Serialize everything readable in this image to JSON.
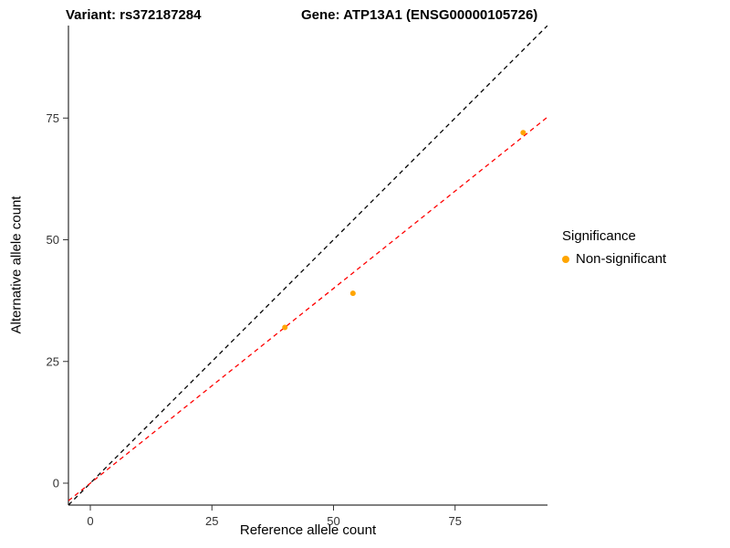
{
  "titles": {
    "left": "Variant: rs372187284",
    "right": "Gene: ATP13A1 (ENSG00000105726)"
  },
  "legend": {
    "title": "Significance",
    "items": [
      {
        "label": "Non-significant",
        "color": "#FFA500"
      }
    ]
  },
  "chart_data": {
    "type": "scatter",
    "title": "Variant: rs372187284  Gene: ATP13A1 (ENSG00000105726)",
    "xlabel": "Reference allele count",
    "ylabel": "Alternative allele count",
    "xlim": [
      -4.5,
      94
    ],
    "ylim": [
      -4.5,
      94
    ],
    "xticks": [
      0,
      25,
      50,
      75
    ],
    "yticks": [
      0,
      25,
      50,
      75
    ],
    "grid": false,
    "legend_position": "right",
    "point_color": "#FFA500",
    "points": [
      {
        "x": 40,
        "y": 32
      },
      {
        "x": 54,
        "y": 39
      },
      {
        "x": 89,
        "y": 72
      }
    ],
    "lines": [
      {
        "name": "identity-line",
        "slope": 1.0,
        "intercept": 0,
        "color": "#000000",
        "dash": "5,4"
      },
      {
        "name": "fit-line",
        "slope": 0.8,
        "intercept": 0,
        "color": "#FF0000",
        "dash": "5,4"
      }
    ]
  }
}
